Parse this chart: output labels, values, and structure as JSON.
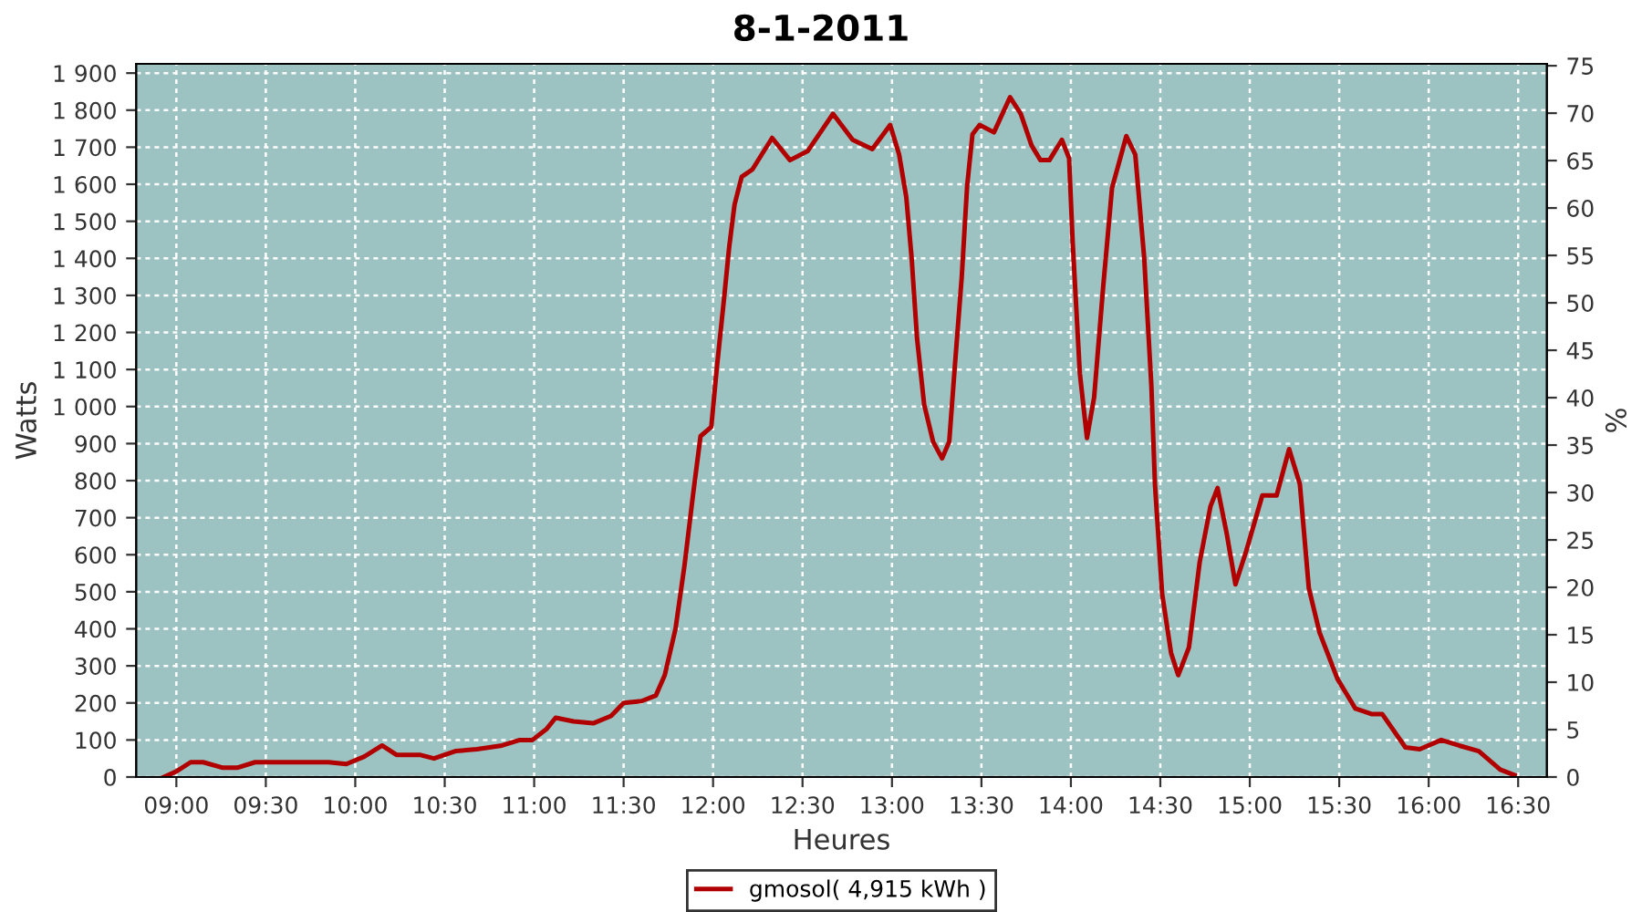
{
  "chart_data": {
    "type": "line",
    "title": "8-1-2011",
    "xlabel": "Heures",
    "ylabel": "Watts",
    "y2label": "%",
    "xlim": [
      8.776,
      16.66
    ],
    "ylim": [
      0,
      1925
    ],
    "y2lim": [
      0,
      75.2
    ],
    "xticks": [
      {
        "value": 9,
        "label": "09:00"
      },
      {
        "value": 9.5,
        "label": "09:30"
      },
      {
        "value": 10,
        "label": "10:00"
      },
      {
        "value": 10.5,
        "label": "10:30"
      },
      {
        "value": 11,
        "label": "11:00"
      },
      {
        "value": 11.5,
        "label": "11:30"
      },
      {
        "value": 12,
        "label": "12:00"
      },
      {
        "value": 12.5,
        "label": "12:30"
      },
      {
        "value": 13,
        "label": "13:00"
      },
      {
        "value": 13.5,
        "label": "13:30"
      },
      {
        "value": 14,
        "label": "14:00"
      },
      {
        "value": 14.5,
        "label": "14:30"
      },
      {
        "value": 15,
        "label": "15:00"
      },
      {
        "value": 15.5,
        "label": "15:30"
      },
      {
        "value": 16,
        "label": "16:00"
      },
      {
        "value": 16.5,
        "label": "16:30"
      }
    ],
    "yticks": [
      0,
      100,
      200,
      300,
      400,
      500,
      600,
      700,
      800,
      900,
      {
        "value": 1000,
        "label": "1 000"
      },
      {
        "value": 1100,
        "label": "1 100"
      },
      {
        "value": 1200,
        "label": "1 200"
      },
      {
        "value": 1300,
        "label": "1 300"
      },
      {
        "value": 1400,
        "label": "1 400"
      },
      {
        "value": 1500,
        "label": "1 500"
      },
      {
        "value": 1600,
        "label": "1 600"
      },
      {
        "value": 1700,
        "label": "1 700"
      },
      {
        "value": 1800,
        "label": "1 800"
      },
      {
        "value": 1900,
        "label": "1 900"
      }
    ],
    "y2ticks": [
      0,
      5,
      10,
      15,
      20,
      25,
      30,
      35,
      40,
      45,
      50,
      55,
      60,
      65,
      70,
      75
    ],
    "grid": true,
    "legend": "bottom",
    "line_style": "solid",
    "series": [
      {
        "name": "gmosol( 4,915 kWh )",
        "color": "#b00000",
        "x": [
          8.93,
          9.0,
          9.08,
          9.15,
          9.26,
          9.34,
          9.44,
          9.85,
          9.95,
          10.05,
          10.15,
          10.23,
          10.36,
          10.44,
          10.56,
          10.68,
          10.82,
          10.92,
          10.99,
          11.07,
          11.12,
          11.22,
          11.33,
          11.43,
          11.5,
          11.6,
          11.68,
          11.73,
          11.79,
          11.84,
          11.89,
          11.93,
          11.99,
          12.02,
          12.06,
          12.09,
          12.12,
          12.16,
          12.22,
          12.33,
          12.43,
          12.53,
          12.67,
          12.78,
          12.89,
          12.99,
          13.04,
          13.08,
          13.11,
          13.14,
          13.18,
          13.23,
          13.28,
          13.32,
          13.35,
          13.39,
          13.42,
          13.45,
          13.49,
          13.57,
          13.66,
          13.72,
          13.78,
          13.83,
          13.88,
          13.95,
          13.99,
          14.01,
          14.05,
          14.09,
          14.13,
          14.18,
          14.23,
          14.31,
          14.36,
          14.41,
          14.45,
          14.47,
          14.51,
          14.56,
          14.6,
          14.66,
          14.72,
          14.78,
          14.82,
          14.87,
          14.92,
          14.98,
          15.07,
          15.15,
          15.22,
          15.28,
          15.33,
          15.39,
          15.49,
          15.59,
          15.68,
          15.74,
          15.87,
          15.95,
          16.07,
          16.17,
          16.28,
          16.4,
          16.48
        ],
        "values": [
          0,
          15,
          40,
          40,
          25,
          25,
          40,
          40,
          35,
          55,
          85,
          60,
          60,
          50,
          70,
          75,
          85,
          100,
          100,
          130,
          160,
          150,
          145,
          165,
          200,
          205,
          220,
          275,
          400,
          570,
          770,
          920,
          945,
          1100,
          1285,
          1430,
          1545,
          1620,
          1640,
          1725,
          1665,
          1690,
          1790,
          1720,
          1695,
          1760,
          1680,
          1565,
          1400,
          1185,
          1005,
          905,
          860,
          905,
          1100,
          1350,
          1595,
          1735,
          1760,
          1740,
          1835,
          1790,
          1705,
          1665,
          1665,
          1720,
          1670,
          1445,
          1090,
          915,
          1025,
          1320,
          1590,
          1730,
          1680,
          1400,
          1055,
          790,
          495,
          335,
          275,
          350,
          580,
          730,
          780,
          660,
          520,
          610,
          760,
          760,
          885,
          790,
          510,
          390,
          265,
          185,
          170,
          170,
          80,
          75,
          100,
          85,
          70,
          20,
          5
        ]
      }
    ]
  }
}
